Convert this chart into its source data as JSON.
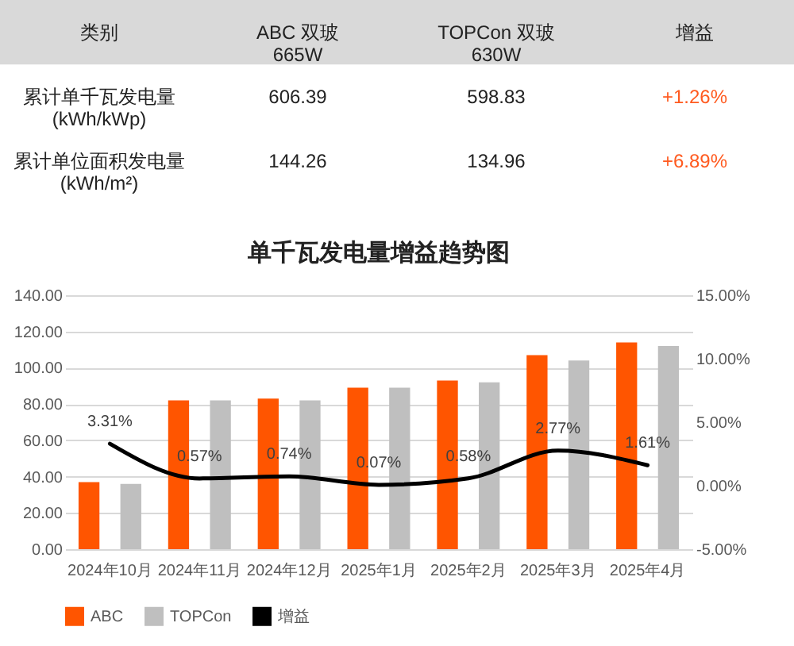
{
  "chart_data": [
    {
      "type": "other",
      "ylabel": "类别",
      "categories": [
        "ABC 双玻\n665W",
        "TOPCon 双玻\n630W",
        "增益"
      ],
      "y_categories": [
        "累计单千瓦发电量\n(kWh/kWp)",
        "累计单位面积发电量\n(kWh/m²)"
      ],
      "cell_labels": [
        [
          "606.39",
          "598.83",
          "+1.26%"
        ],
        [
          "144.26",
          "134.96",
          "+6.89%"
        ]
      ]
    },
    {
      "type": "bar",
      "title": "单千瓦发电量增益趋势图",
      "categories": [
        "2024年10月",
        "2024年11月",
        "2024年12月",
        "2025年1月",
        "2025年2月",
        "2025年3月",
        "2025年4月"
      ],
      "series": [
        {
          "name": "ABC",
          "color": "#ff5500",
          "values": [
            37,
            82,
            83,
            89,
            93,
            107,
            114
          ]
        },
        {
          "name": "TOPCon",
          "color": "#bfbfbf",
          "values": [
            36,
            82,
            82,
            89,
            92,
            104,
            112
          ]
        },
        {
          "name": "增益",
          "type": "line",
          "axis": "y2",
          "color": "#000000",
          "values": [
            3.31,
            0.57,
            0.74,
            0.07,
            0.58,
            2.77,
            1.61
          ],
          "value_labels": [
            "3.31%",
            "0.57%",
            "0.74%",
            "0.07%",
            "0.58%",
            "2.77%",
            "1.61%"
          ]
        }
      ],
      "ylim": [
        0,
        140
      ],
      "yticks": [
        {
          "value": 0,
          "label": "0.00"
        },
        {
          "value": 20,
          "label": "20.00"
        },
        {
          "value": 40,
          "label": "40.00"
        },
        {
          "value": 60,
          "label": "60.00"
        },
        {
          "value": 80,
          "label": "80.00"
        },
        {
          "value": 100,
          "label": "100.00"
        },
        {
          "value": 120,
          "label": "120.00"
        },
        {
          "value": 140,
          "label": "140.00"
        }
      ],
      "y2lim": [
        -5,
        15
      ],
      "y2ticks": [
        {
          "value": -5,
          "label": "-5.00%"
        },
        {
          "value": 0,
          "label": "0.00%"
        },
        {
          "value": 5,
          "label": "5.00%"
        },
        {
          "value": 10,
          "label": "10.00%"
        },
        {
          "value": 15,
          "label": "15.00%"
        }
      ],
      "grid": "y",
      "legend": "bottom"
    }
  ]
}
